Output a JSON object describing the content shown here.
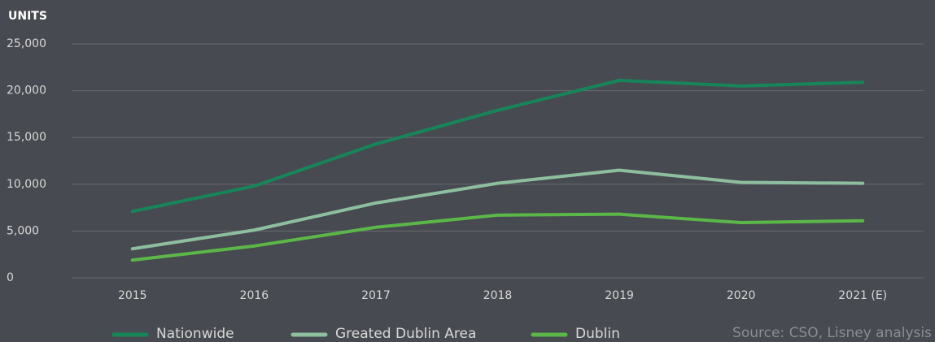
{
  "chart_data": {
    "type": "line",
    "y_label": "UNITS",
    "source": "Source: CSO, Lisney analysis",
    "categories": [
      "2015",
      "2016",
      "2017",
      "2018",
      "2019",
      "2020",
      "2021 (E)"
    ],
    "series": [
      {
        "name": "Nationwide",
        "color": "#17855a",
        "values": [
          7100,
          9800,
          14300,
          17900,
          21100,
          20500,
          20900
        ]
      },
      {
        "name": "Greated Dublin Area",
        "color": "#8dbf9f",
        "values": [
          3100,
          5100,
          8000,
          10100,
          11500,
          10200,
          10100
        ]
      },
      {
        "name": "Dublin",
        "color": "#5bb848",
        "values": [
          1900,
          3400,
          5400,
          6700,
          6800,
          5900,
          6100
        ]
      }
    ],
    "ylim": [
      0,
      25000
    ],
    "yticks": [
      0,
      {
        "value": 5000,
        "label": "5,000"
      },
      {
        "value": 10000,
        "label": "10,000"
      },
      {
        "value": 15000,
        "label": "15,000"
      },
      {
        "value": 20000,
        "label": "20,000"
      },
      {
        "value": 25000,
        "label": "25,000"
      }
    ],
    "grid": true
  }
}
